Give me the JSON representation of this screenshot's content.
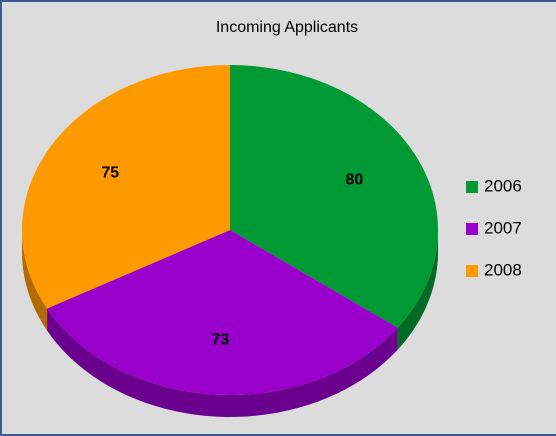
{
  "chart_data": {
    "type": "pie",
    "title": "Incoming Applicants",
    "categories": [
      "2006",
      "2007",
      "2008"
    ],
    "values": [
      80,
      73,
      75
    ],
    "colors": [
      "#009933",
      "#9900cc",
      "#ff9900"
    ],
    "legend": "right"
  }
}
